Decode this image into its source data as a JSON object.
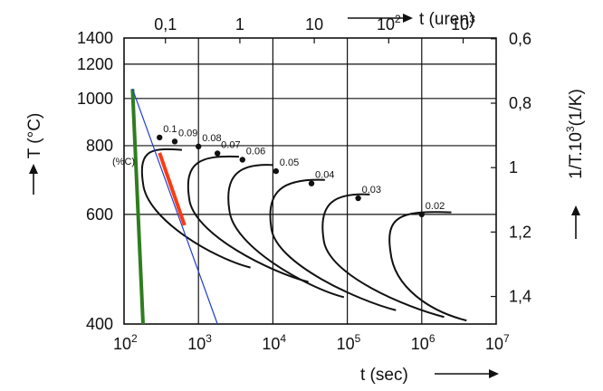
{
  "chart_data": {
    "type": "line",
    "title": "",
    "bottom_axis": {
      "label": "t (sec)",
      "scale": "log",
      "range": [
        100,
        10000000
      ],
      "ticks": [
        {
          "value": 100,
          "base": "10",
          "exp": "2"
        },
        {
          "value": 1000,
          "base": "10",
          "exp": "3"
        },
        {
          "value": 10000,
          "base": "10",
          "exp": "4"
        },
        {
          "value": 100000,
          "base": "10",
          "exp": "5"
        },
        {
          "value": 1000000,
          "base": "10",
          "exp": "6"
        },
        {
          "value": 10000000,
          "base": "10",
          "exp": "7"
        }
      ]
    },
    "top_axis": {
      "label": "t (uren)",
      "scale": "log",
      "ticks": [
        {
          "value": 0.1,
          "base": "0,1",
          "exp": ""
        },
        {
          "value": 1,
          "base": "1",
          "exp": ""
        },
        {
          "value": 10,
          "base": "10",
          "exp": ""
        },
        {
          "value": 100,
          "base": "10",
          "exp": "2"
        },
        {
          "value": 1000,
          "base": "10",
          "exp": "3"
        }
      ]
    },
    "left_axis": {
      "label": "T (°C)",
      "range": [
        400,
        1400
      ],
      "ticks": [
        400,
        600,
        800,
        1000,
        1200,
        1400
      ]
    },
    "right_axis": {
      "label_prefix": "1/T.10",
      "label_exp": "3",
      "label_suffix": "(1/K)",
      "ticks": [
        "0,6",
        "0,8",
        "1",
        "1,2",
        "1,4"
      ],
      "tick_values": [
        0.6,
        0.8,
        1.0,
        1.2,
        1.4
      ]
    },
    "carbon_label": "(%C)",
    "series": [
      {
        "carbon": "0.1",
        "nose_t": 300,
        "nose_T": 830
      },
      {
        "carbon": "0.09",
        "nose_t": 480,
        "nose_T": 815
      },
      {
        "carbon": "0.08",
        "nose_t": 1000,
        "nose_T": 797
      },
      {
        "carbon": "0.07",
        "nose_t": 1800,
        "nose_T": 773
      },
      {
        "carbon": "0.06",
        "nose_t": 3900,
        "nose_T": 752
      },
      {
        "carbon": "0.05",
        "nose_t": 11000,
        "nose_T": 716
      },
      {
        "carbon": "0.04",
        "nose_t": 33000,
        "nose_T": 680
      },
      {
        "carbon": "0.03",
        "nose_t": 140000,
        "nose_T": 640
      },
      {
        "carbon": "0.02",
        "nose_t": 1000000,
        "nose_T": 600
      }
    ],
    "c_curves": [
      {
        "start": [
          600,
          785
        ],
        "nose": [
          180,
          680
        ],
        "end": [
          5000,
          490
        ]
      },
      {
        "start": [
          3500,
          762
        ],
        "nose": [
          750,
          640
        ],
        "end": [
          30000,
          465
        ]
      },
      {
        "start": [
          10000,
          735
        ],
        "nose": [
          2600,
          610
        ],
        "end": [
          90000,
          440
        ]
      },
      {
        "start": [
          50000,
          690
        ],
        "nose": [
          9500,
          570
        ],
        "end": [
          450000,
          420
        ]
      },
      {
        "start": [
          200000,
          650
        ],
        "nose": [
          48000,
          545
        ],
        "end": [
          2000000,
          410
        ]
      },
      {
        "start": [
          2500000,
          605
        ],
        "nose": [
          380000,
          520
        ],
        "end": [
          4000000,
          405
        ]
      }
    ],
    "cooling_lines": [
      {
        "name": "green",
        "color": "#2f7d1f",
        "from": [
          130,
          1050
        ],
        "to": [
          180,
          400
        ]
      },
      {
        "name": "blue",
        "color": "#1f3fd0",
        "from": [
          130,
          1050
        ],
        "to": [
          1800,
          400
        ]
      },
      {
        "name": "red",
        "color": "#ff3a10",
        "from": [
          300,
          775
        ],
        "to": [
          650,
          575
        ]
      }
    ]
  }
}
